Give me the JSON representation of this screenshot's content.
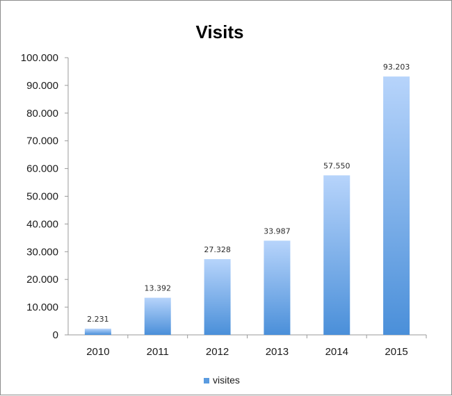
{
  "chart_data": {
    "type": "bar",
    "title": "Visits",
    "xlabel": "",
    "ylabel": "",
    "categories": [
      "2010",
      "2011",
      "2012",
      "2013",
      "2014",
      "2015"
    ],
    "series": [
      {
        "name": "visites",
        "values": [
          2231,
          13392,
          27328,
          33987,
          57550,
          93203
        ],
        "labels": [
          "2.231",
          "13.392",
          "27.328",
          "33.987",
          "57.550",
          "93.203"
        ]
      }
    ],
    "ylim": [
      0,
      100000
    ],
    "yticks": [
      0,
      10000,
      20000,
      30000,
      40000,
      50000,
      60000,
      70000,
      80000,
      90000,
      100000
    ],
    "ytick_labels": [
      "0",
      "10.000",
      "20.000",
      "30.000",
      "40.000",
      "50.000",
      "60.000",
      "70.000",
      "80.000",
      "90.000",
      "100.000"
    ],
    "grid": false,
    "legend": "bottom"
  },
  "colors": {
    "bar_top": "#b7d4fb",
    "bar_bottom": "#4a8fd9",
    "legend_swatch": "#5a9be0",
    "axis": "#9a9a9a"
  }
}
